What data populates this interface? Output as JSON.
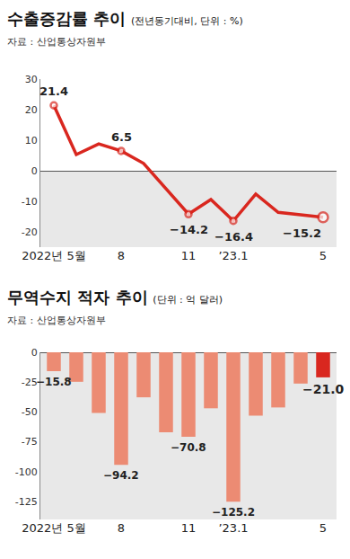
{
  "chart_data": [
    {
      "type": "line",
      "title": "수출증감률 추이",
      "subtitle": "(전년동기대비, 단위 : %)",
      "source": "자료 : 산업통상자원부",
      "categories": [
        "2022년 5월",
        null,
        null,
        "8",
        null,
        null,
        "11",
        null,
        "’23.1",
        null,
        null,
        null,
        "5"
      ],
      "values": [
        21.4,
        5.3,
        8.8,
        6.5,
        2.4,
        -5.8,
        -14.2,
        -9.4,
        -16.4,
        -7.6,
        -13.6,
        -14.4,
        -15.2
      ],
      "value_labels": [
        "21.4",
        null,
        null,
        "6.5",
        null,
        null,
        "−14.2",
        null,
        "−16.4",
        null,
        null,
        null,
        "−15.2"
      ],
      "color": "#d9271f",
      "marker": "circle",
      "ylim": [
        -25,
        30
      ],
      "yticks": [
        30,
        20,
        10,
        0,
        -10,
        -20
      ],
      "grid": false
    },
    {
      "type": "bar",
      "title": "무역수지 적자 추이",
      "subtitle": "(단위 : 억 달러)",
      "source": "자료 : 산업통상자원부",
      "categories": [
        "2022년 5월",
        null,
        null,
        "8",
        null,
        null,
        "11",
        null,
        "’23.1",
        null,
        null,
        null,
        "5"
      ],
      "values": [
        -15.8,
        -24.7,
        -50.8,
        -94.2,
        -37.7,
        -67.0,
        -70.8,
        -46.9,
        -125.2,
        -53.0,
        -46.2,
        -26.2,
        -21.0
      ],
      "value_labels": [
        "−15.8",
        null,
        null,
        "−94.2",
        null,
        null,
        "−70.8",
        null,
        "−125.2",
        null,
        null,
        null,
        "−21.0"
      ],
      "colors": [
        "#ec8b73",
        "#ec8b73",
        "#ec8b73",
        "#ec8b73",
        "#ec8b73",
        "#ec8b73",
        "#ec8b73",
        "#ec8b73",
        "#ec8b73",
        "#ec8b73",
        "#ec8b73",
        "#ec8b73",
        "#d9271f"
      ],
      "ylim": [
        -140,
        0
      ],
      "yticks": [
        0,
        -25,
        -50,
        -75,
        -100,
        -125
      ],
      "grid": false
    }
  ]
}
